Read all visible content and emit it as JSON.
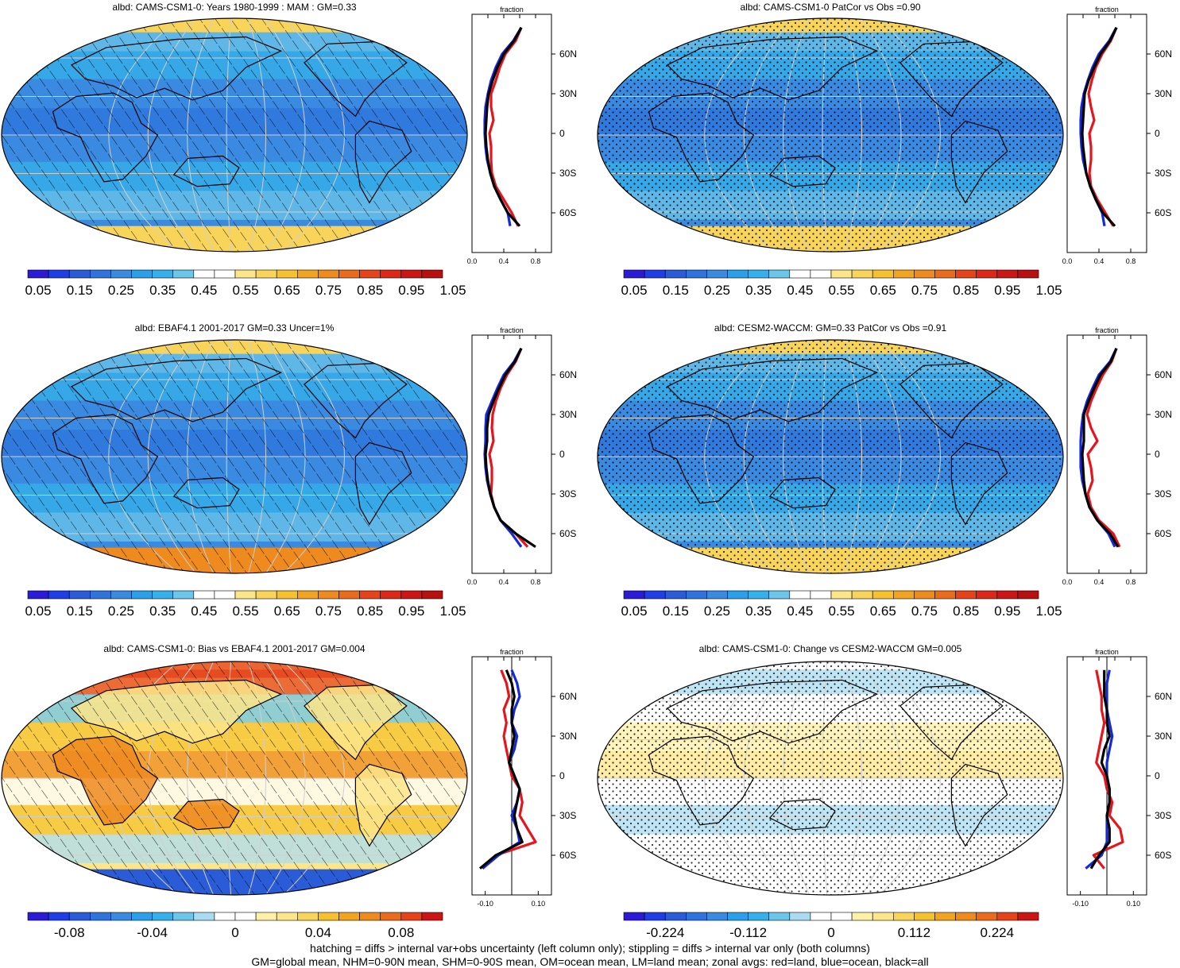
{
  "footer": {
    "line1": "hatching = diffs > internal var+obs uncertainty (left column only); stippling = diffs > internal var only (both columns)",
    "line2": "GM=global mean, NHM=0-90N mean, SHM=0-90S mean, OM=ocean mean, LM=land mean; zonal avgs: red=land, blue=ocean, black=all"
  },
  "colors": {
    "land": "#e8141c",
    "ocean": "#1428dc",
    "all": "#000000",
    "scale_full": [
      "#2b1bd6",
      "#1f3ee6",
      "#2a5cd8",
      "#2f74dc",
      "#3a8ae0",
      "#2a9fea",
      "#35b0ea",
      "#6cc6ea",
      "#ffffff",
      "#ffffff",
      "#fde58a",
      "#f8d55a",
      "#f5c12e",
      "#f1a321",
      "#ee8a1e",
      "#eb6b1c",
      "#e6431b",
      "#dd2719",
      "#cc1515",
      "#b80f0f"
    ],
    "scale_diff": [
      "#2b1bd6",
      "#1f3ee6",
      "#2a5cd8",
      "#2f74dc",
      "#3a8ae0",
      "#2a9fea",
      "#35b0ea",
      "#6cc6ea",
      "#a9dcf2",
      "#ffffff",
      "#ffffff",
      "#fff0a8",
      "#fde58a",
      "#f8d55a",
      "#f5c12e",
      "#f1a321",
      "#ee8a1e",
      "#eb6b1c",
      "#e6431b",
      "#cc1515"
    ]
  },
  "panels": [
    {
      "title": "albd: CAMS-CSM1-0: Years 1980-1999 : MAM : GM=0.33",
      "pattern": "hatch",
      "theme": "full",
      "colorbar_labels": [
        "0.05",
        "0.15",
        "0.25",
        "0.35",
        "0.45",
        "0.55",
        "0.65",
        "0.75",
        "0.85",
        "0.95",
        "1.05"
      ],
      "zonal": {
        "unit": "fraction",
        "xticks": [
          "0.0",
          "0.4",
          "0.8"
        ],
        "lat_labels": [
          "60N",
          "30N",
          "0",
          "30S",
          "60S"
        ]
      }
    },
    {
      "title": "albd: CAMS-CSM1-0 PatCor vs Obs =0.90",
      "pattern": "stipple",
      "theme": "full",
      "colorbar_labels": [
        "0.05",
        "0.15",
        "0.25",
        "0.35",
        "0.45",
        "0.55",
        "0.65",
        "0.75",
        "0.85",
        "0.95",
        "1.05"
      ],
      "zonal": {
        "unit": "fraction",
        "xticks": [
          "0.0",
          "0.4",
          "0.8"
        ],
        "lat_labels": [
          "60N",
          "30N",
          "0",
          "30S",
          "60S"
        ]
      }
    },
    {
      "title": "albd: EBAF4.1 2001-2017 GM=0.33 Uncer=1%",
      "pattern": "hatch",
      "theme": "obs",
      "colorbar_labels": [
        "0.05",
        "0.15",
        "0.25",
        "0.35",
        "0.45",
        "0.55",
        "0.65",
        "0.75",
        "0.85",
        "0.95",
        "1.05"
      ],
      "zonal": {
        "unit": "fraction",
        "xticks": [
          "0.0",
          "0.4",
          "0.8"
        ],
        "lat_labels": [
          "60N",
          "30N",
          "0",
          "30S",
          "60S"
        ]
      }
    },
    {
      "title": "albd: CESM2-WACCM: GM=0.33 PatCor vs Obs =0.91",
      "pattern": "stipple",
      "theme": "full",
      "colorbar_labels": [
        "0.05",
        "0.15",
        "0.25",
        "0.35",
        "0.45",
        "0.55",
        "0.65",
        "0.75",
        "0.85",
        "0.95",
        "1.05"
      ],
      "zonal": {
        "unit": "fraction",
        "xticks": [
          "0.0",
          "0.4",
          "0.8"
        ],
        "lat_labels": [
          "60N",
          "30N",
          "0",
          "30S",
          "60S"
        ]
      }
    },
    {
      "title": "albd: CAMS-CSM1-0: Bias vs EBAF4.1 2001-2017 GM=0.004",
      "pattern": "hatch",
      "theme": "bias",
      "colorbar_labels": [
        "-0.08",
        "-0.04",
        "0",
        "0.04",
        "0.08"
      ],
      "zonal": {
        "unit": "fraction",
        "xticks": [
          "-0.10",
          "0.10"
        ],
        "lat_labels": [
          "60N",
          "30N",
          "0",
          "30S",
          "60S"
        ]
      }
    },
    {
      "title": "albd: CAMS-CSM1-0: Change vs CESM2-WACCM GM=0.005",
      "pattern": "stipple",
      "theme": "change",
      "colorbar_labels": [
        "-0.224",
        "-0.112",
        "0",
        "0.112",
        "0.224"
      ],
      "zonal": {
        "unit": "fraction",
        "xticks": [
          "-0.10",
          "0.10"
        ],
        "lat_labels": [
          "60N",
          "30N",
          "0",
          "30S",
          "60S"
        ]
      }
    }
  ],
  "chart_data": [
    {
      "type": "line",
      "title": "albd: CAMS-CSM1-0: Years 1980-1999 : MAM : GM=0.33",
      "xlabel": "fraction",
      "xlim": [
        0,
        1.0
      ],
      "ylim": [
        -90,
        90
      ],
      "lat": [
        80,
        70,
        60,
        50,
        40,
        30,
        20,
        10,
        0,
        -10,
        -20,
        -30,
        -40,
        -50,
        -60,
        -70
      ],
      "series": [
        {
          "name": "land",
          "values": [
            0.62,
            0.55,
            0.42,
            0.35,
            0.3,
            0.24,
            0.24,
            0.27,
            0.22,
            0.24,
            0.24,
            0.25,
            0.3,
            0.4,
            0.5,
            0.58
          ]
        },
        {
          "name": "ocean",
          "values": [
            0.62,
            0.52,
            0.38,
            0.3,
            0.24,
            0.2,
            0.17,
            0.16,
            0.16,
            0.17,
            0.19,
            0.23,
            0.28,
            0.36,
            0.45,
            0.48
          ]
        },
        {
          "name": "all",
          "values": [
            0.62,
            0.53,
            0.4,
            0.32,
            0.26,
            0.21,
            0.19,
            0.18,
            0.17,
            0.18,
            0.2,
            0.23,
            0.28,
            0.36,
            0.45,
            0.6
          ]
        }
      ]
    },
    {
      "type": "line",
      "title": "albd: CAMS-CSM1-0 PatCor vs Obs =0.90",
      "xlabel": "fraction",
      "xlim": [
        0,
        1.0
      ],
      "ylim": [
        -90,
        90
      ],
      "lat": [
        80,
        70,
        60,
        50,
        40,
        30,
        20,
        10,
        0,
        -10,
        -20,
        -30,
        -40,
        -50,
        -60,
        -70
      ],
      "series": [
        {
          "name": "land",
          "values": [
            0.62,
            0.55,
            0.44,
            0.36,
            0.31,
            0.27,
            0.3,
            0.34,
            0.28,
            0.3,
            0.3,
            0.28,
            0.3,
            0.38,
            0.48,
            0.58
          ]
        },
        {
          "name": "ocean",
          "values": [
            0.62,
            0.53,
            0.4,
            0.32,
            0.26,
            0.21,
            0.18,
            0.17,
            0.17,
            0.18,
            0.2,
            0.24,
            0.29,
            0.36,
            0.44,
            0.47
          ]
        },
        {
          "name": "all",
          "values": [
            0.62,
            0.54,
            0.42,
            0.34,
            0.27,
            0.22,
            0.21,
            0.2,
            0.19,
            0.2,
            0.22,
            0.24,
            0.29,
            0.36,
            0.45,
            0.6
          ]
        }
      ]
    },
    {
      "type": "line",
      "title": "albd: EBAF4.1 2001-2017 GM=0.33 Uncer=1%",
      "xlabel": "fraction",
      "xlim": [
        0,
        1.0
      ],
      "ylim": [
        -90,
        90
      ],
      "lat": [
        80,
        70,
        60,
        50,
        40,
        30,
        20,
        10,
        0,
        -10,
        -20,
        -30,
        -40,
        -50,
        -60,
        -70
      ],
      "series": [
        {
          "name": "land",
          "values": [
            0.62,
            0.55,
            0.44,
            0.36,
            0.3,
            0.26,
            0.25,
            0.27,
            0.22,
            0.25,
            0.25,
            0.24,
            0.28,
            0.36,
            0.55,
            0.7
          ]
        },
        {
          "name": "ocean",
          "values": [
            0.62,
            0.53,
            0.4,
            0.32,
            0.25,
            0.18,
            0.17,
            0.17,
            0.16,
            0.17,
            0.19,
            0.23,
            0.28,
            0.36,
            0.5,
            0.62
          ]
        },
        {
          "name": "all",
          "values": [
            0.62,
            0.54,
            0.42,
            0.34,
            0.27,
            0.21,
            0.19,
            0.19,
            0.17,
            0.18,
            0.2,
            0.23,
            0.28,
            0.36,
            0.55,
            0.8
          ]
        }
      ]
    },
    {
      "type": "line",
      "title": "albd: CESM2-WACCM: GM=0.33 PatCor vs Obs =0.91",
      "xlabel": "fraction",
      "xlim": [
        0,
        1.0
      ],
      "ylim": [
        -90,
        90
      ],
      "lat": [
        80,
        70,
        60,
        50,
        40,
        30,
        20,
        10,
        0,
        -10,
        -20,
        -30,
        -40,
        -50,
        -60,
        -70
      ],
      "series": [
        {
          "name": "land",
          "values": [
            0.62,
            0.56,
            0.45,
            0.37,
            0.3,
            0.25,
            0.3,
            0.38,
            0.26,
            0.3,
            0.32,
            0.26,
            0.3,
            0.4,
            0.58,
            0.66
          ]
        },
        {
          "name": "ocean",
          "values": [
            0.62,
            0.54,
            0.4,
            0.32,
            0.25,
            0.2,
            0.18,
            0.17,
            0.17,
            0.17,
            0.19,
            0.23,
            0.28,
            0.38,
            0.52,
            0.6
          ]
        },
        {
          "name": "all",
          "values": [
            0.62,
            0.55,
            0.42,
            0.34,
            0.27,
            0.21,
            0.21,
            0.21,
            0.19,
            0.2,
            0.21,
            0.23,
            0.28,
            0.38,
            0.54,
            0.64
          ]
        }
      ]
    },
    {
      "type": "line",
      "title": "albd: CAMS-CSM1-0: Bias vs EBAF4.1 2001-2017 GM=0.004",
      "xlabel": "fraction",
      "xlim": [
        -0.15,
        0.15
      ],
      "ylim": [
        -90,
        90
      ],
      "lat": [
        80,
        70,
        60,
        50,
        40,
        30,
        20,
        10,
        0,
        -10,
        -20,
        -30,
        -40,
        -50,
        -60,
        -70
      ],
      "series": [
        {
          "name": "land",
          "values": [
            -0.04,
            -0.02,
            -0.01,
            -0.03,
            -0.02,
            -0.03,
            -0.02,
            -0.01,
            0.0,
            0.03,
            0.04,
            0.03,
            0.06,
            0.09,
            -0.06,
            -0.11
          ]
        },
        {
          "name": "ocean",
          "values": [
            0.0,
            0.02,
            0.03,
            0.01,
            0.0,
            0.02,
            0.01,
            -0.01,
            0.01,
            0.03,
            0.02,
            0.0,
            0.02,
            0.03,
            -0.05,
            -0.11
          ]
        },
        {
          "name": "all",
          "values": [
            -0.02,
            0.0,
            0.01,
            0.0,
            0.0,
            0.01,
            0.0,
            -0.01,
            0.01,
            0.03,
            0.02,
            0.01,
            0.02,
            0.04,
            -0.06,
            -0.12
          ]
        }
      ]
    },
    {
      "type": "line",
      "title": "albd: CAMS-CSM1-0: Change vs CESM2-WACCM GM=0.005",
      "xlabel": "fraction",
      "xlim": [
        -0.15,
        0.15
      ],
      "ylim": [
        -90,
        90
      ],
      "lat": [
        80,
        70,
        60,
        50,
        40,
        30,
        20,
        10,
        0,
        -10,
        -20,
        -30,
        -40,
        -50,
        -60,
        -70
      ],
      "series": [
        {
          "name": "land",
          "values": [
            -0.04,
            -0.03,
            -0.02,
            -0.02,
            -0.01,
            -0.02,
            -0.03,
            -0.04,
            -0.01,
            0.0,
            0.02,
            0.01,
            0.05,
            0.06,
            -0.05,
            -0.01
          ]
        },
        {
          "name": "ocean",
          "values": [
            0.01,
            0.0,
            0.0,
            0.0,
            0.01,
            0.02,
            0.01,
            0.0,
            0.0,
            0.01,
            0.01,
            0.0,
            0.0,
            0.0,
            -0.02,
            -0.08
          ]
        },
        {
          "name": "all",
          "values": [
            -0.01,
            -0.01,
            -0.01,
            0.0,
            0.0,
            0.01,
            -0.01,
            -0.02,
            0.0,
            0.01,
            0.01,
            0.0,
            0.01,
            0.01,
            -0.03,
            -0.06
          ]
        }
      ]
    }
  ]
}
